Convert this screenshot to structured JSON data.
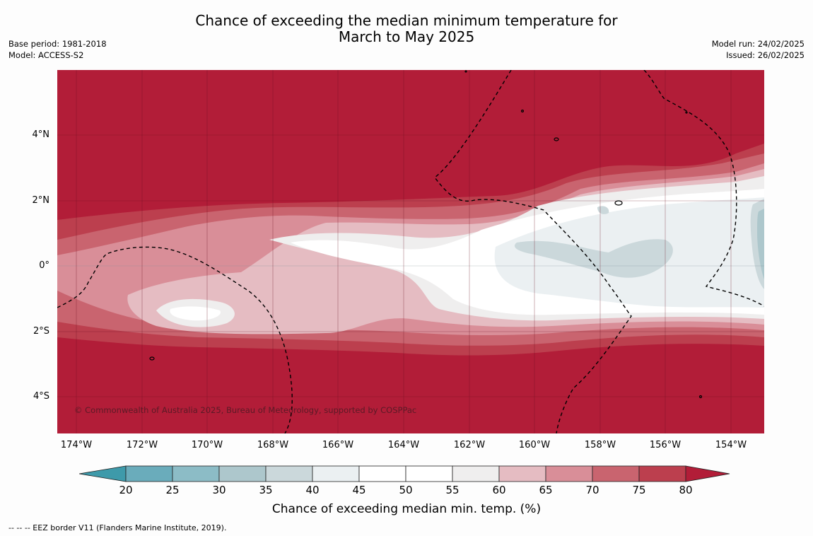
{
  "title_line1": "Chance of exceeding the median minimum temperature for",
  "title_line2": "March to May 2025",
  "base_period": "Base period: 1981-2018",
  "model": "Model: ACCESS-S2",
  "model_run": "Model run: 24/02/2025",
  "issued": "Issued: 26/02/2025",
  "credit": "© Commonwealth of Australia 2025, Bureau of Meteorology, supported by COSPPac",
  "lat_labels": [
    "4°N",
    "2°N",
    "0°",
    "2°S",
    "4°S"
  ],
  "lon_labels": [
    "174°W",
    "172°W",
    "170°W",
    "168°W",
    "166°W",
    "164°W",
    "162°W",
    "160°W",
    "158°W",
    "156°W",
    "154°W"
  ],
  "colorbar": {
    "ticks": [
      "20",
      "25",
      "30",
      "35",
      "40",
      "45",
      "50",
      "55",
      "60",
      "65",
      "70",
      "75",
      "80"
    ],
    "colors": [
      "#3e9aaa",
      "#6aacbb",
      "#8cbcc6",
      "#adc7cc",
      "#cbd8db",
      "#ebf0f2",
      "#ffffff",
      "#ffffff",
      "#efeeee",
      "#e5bcc2",
      "#d98e98",
      "#c9646f",
      "#bc3f4e",
      "#b21d38"
    ],
    "label": "Chance of exceeding median min. temp. (%)"
  },
  "footnote": "-- -- -- EEZ border V11 (Flanders Marine Institute, 2019)."
}
